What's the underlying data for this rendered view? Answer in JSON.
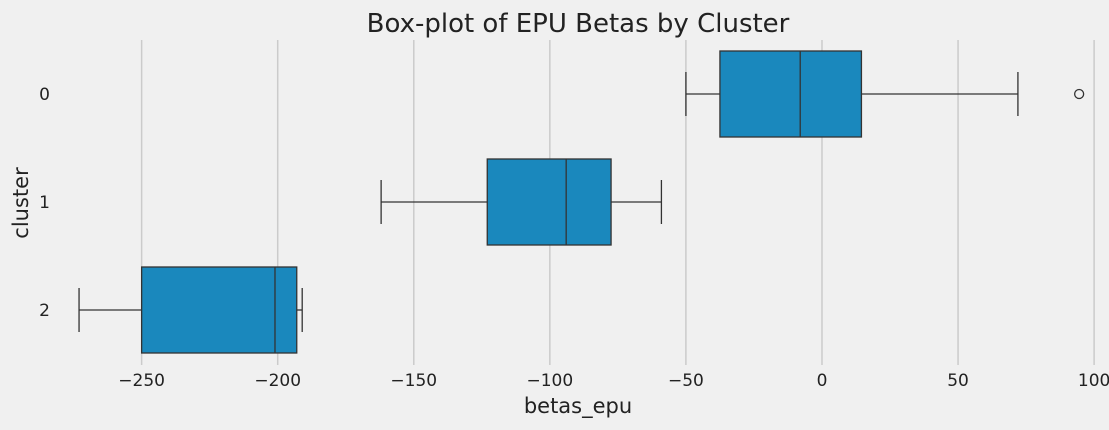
{
  "chart_data": {
    "type": "box",
    "title": "Box-plot of EPU Betas by Cluster",
    "xlabel": "betas_epu",
    "ylabel": "cluster",
    "xlim": [
      -280,
      104
    ],
    "x_ticks": [
      -250,
      -200,
      -150,
      -100,
      -50,
      0,
      50,
      100
    ],
    "x_tick_labels": [
      "−250",
      "−200",
      "−150",
      "−100",
      "−50",
      "0",
      "50",
      "100"
    ],
    "grid": "vertical",
    "orientation": "horizontal",
    "box_color": "#1a88bd",
    "line_color": "#333333",
    "categories": [
      "0",
      "1",
      "2"
    ],
    "boxes": [
      {
        "category": "0",
        "whisker_low": -50,
        "q1": -37.5,
        "median": -8,
        "q3": 14.5,
        "whisker_high": 72,
        "outliers": [
          94.5
        ]
      },
      {
        "category": "1",
        "whisker_low": -162,
        "q1": -123,
        "median": -94,
        "q3": -77.5,
        "whisker_high": -59,
        "outliers": []
      },
      {
        "category": "2",
        "whisker_low": -273,
        "q1": -250,
        "median": -201,
        "q3": -193,
        "whisker_high": -191,
        "outliers": []
      }
    ]
  }
}
